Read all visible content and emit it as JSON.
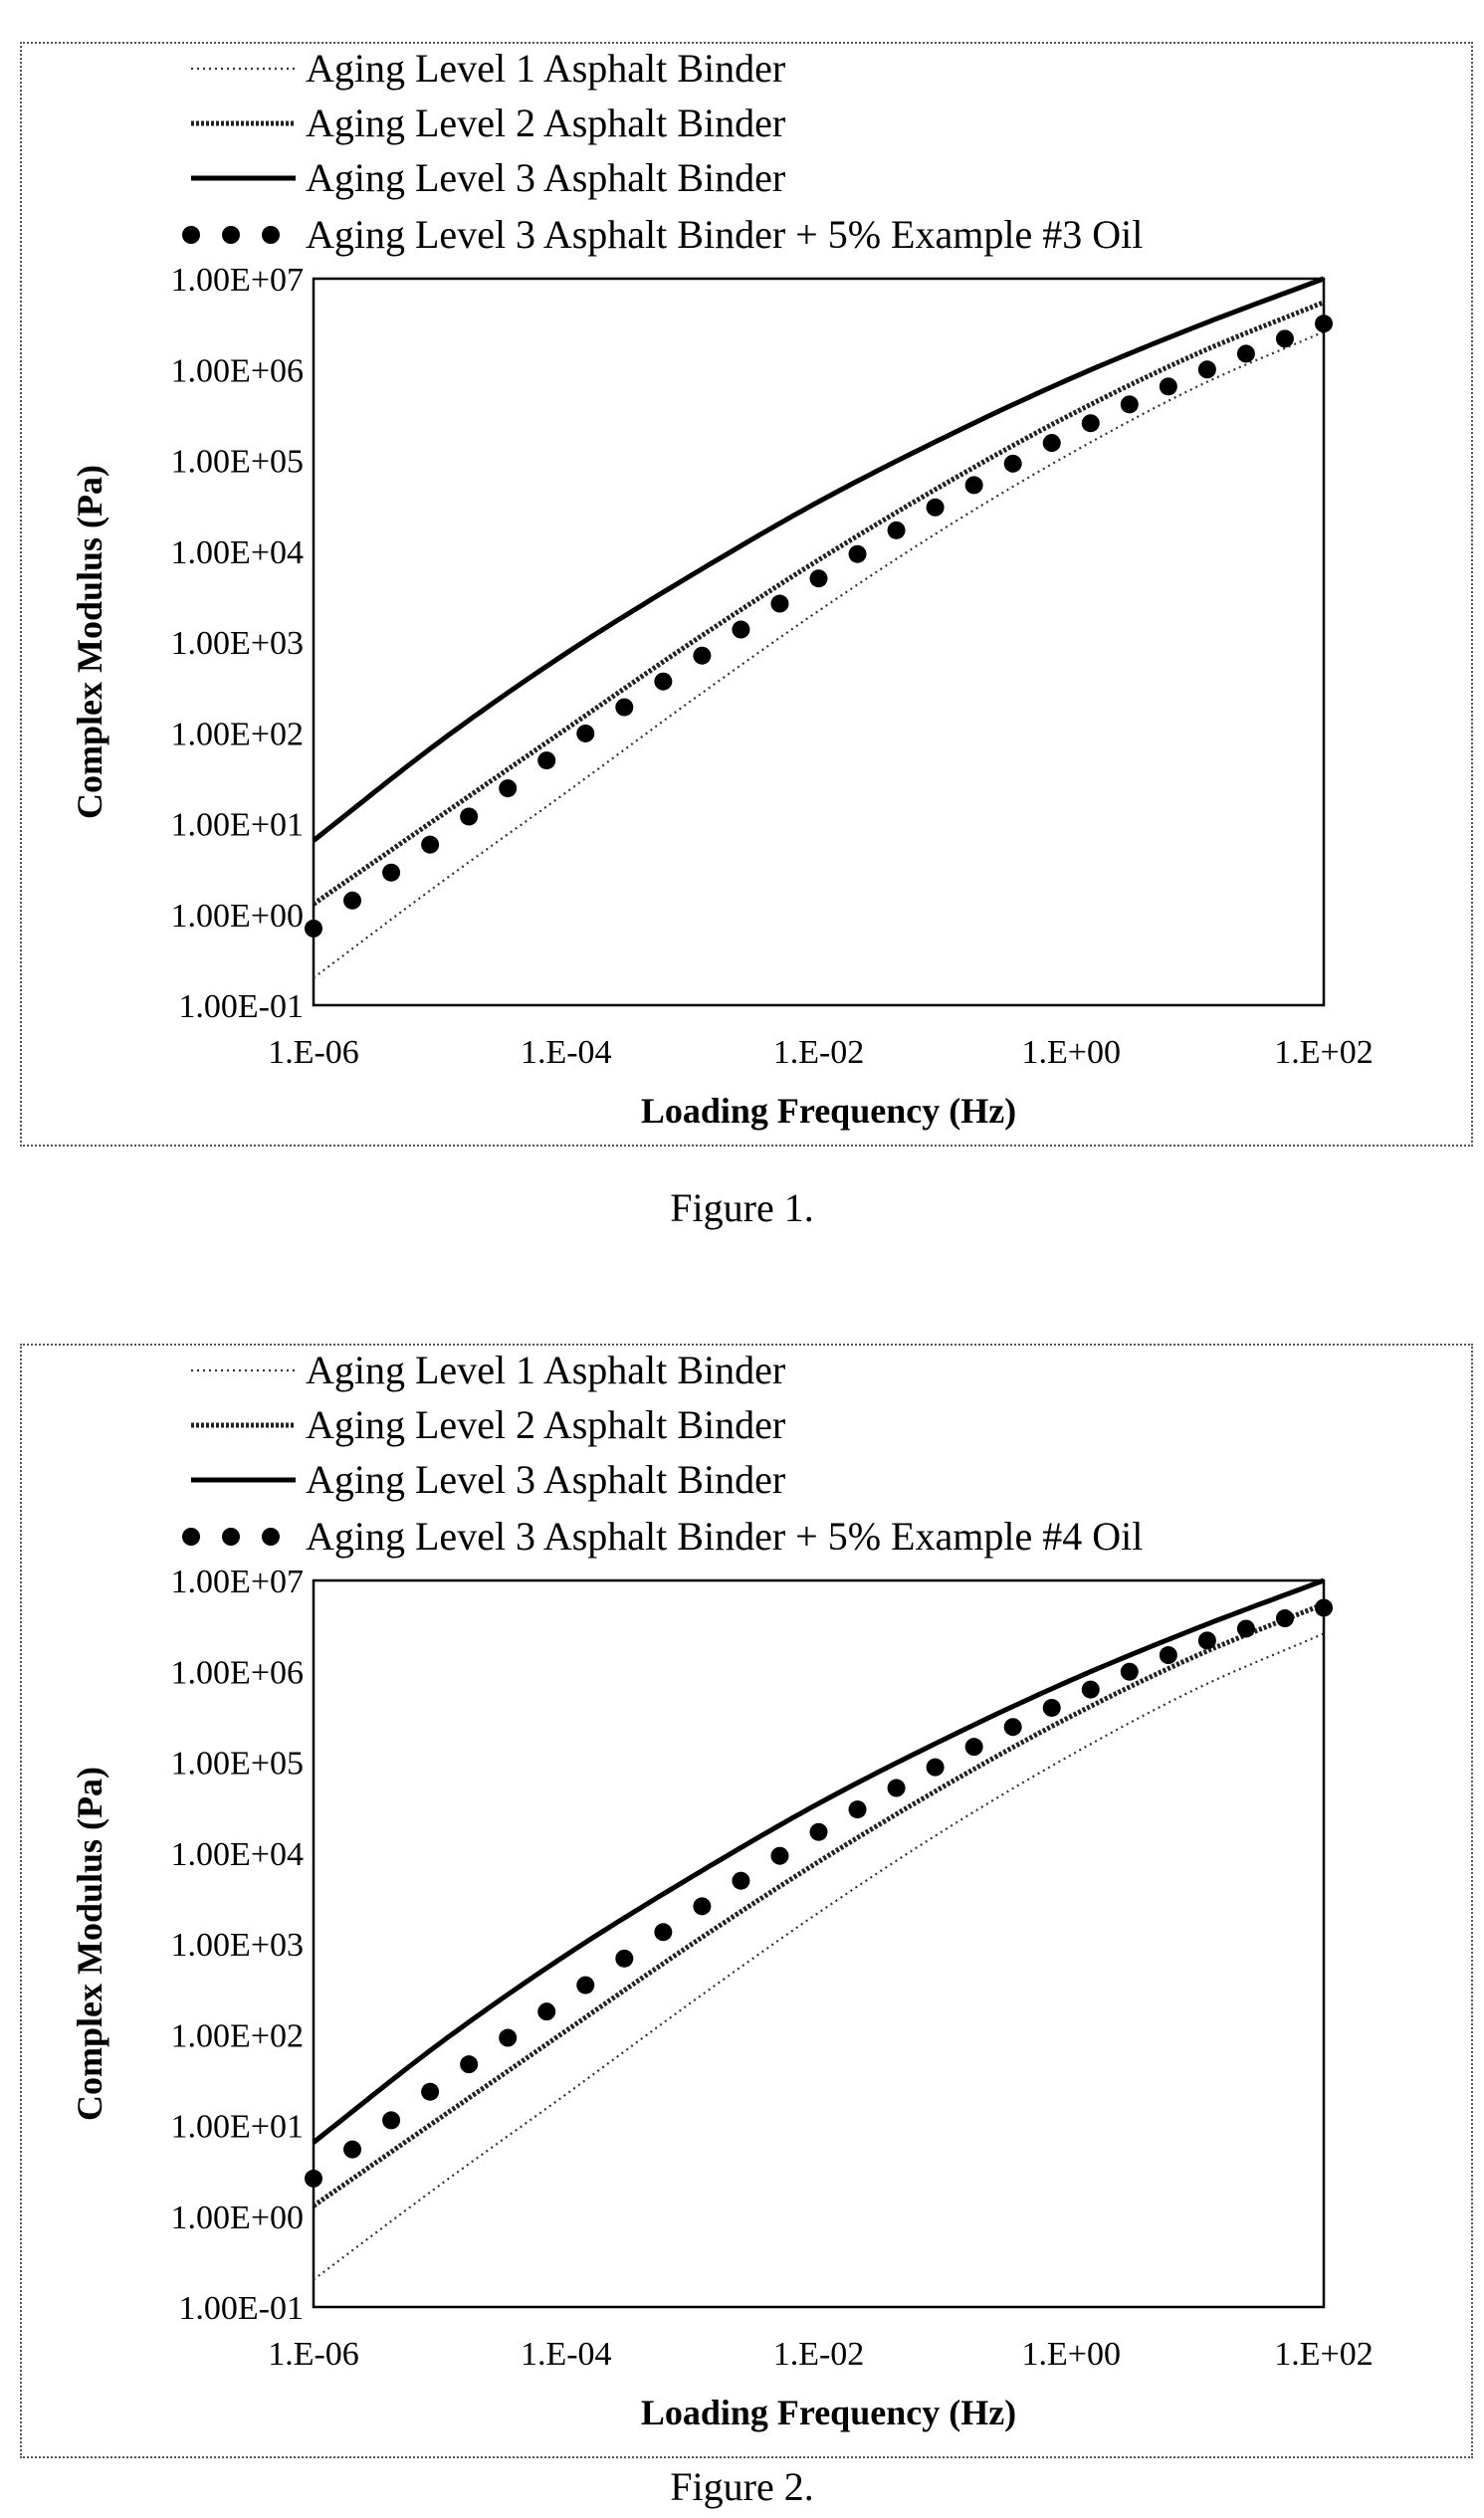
{
  "chart_data": [
    {
      "type": "line",
      "figure_caption": "Figure 1.",
      "xlabel": "Loading Frequency (Hz)",
      "ylabel": "Complex Modulus (Pa)",
      "xscale": "log",
      "yscale": "log",
      "xlim": [
        1e-06,
        100
      ],
      "ylim": [
        0.1,
        10000000
      ],
      "x_ticks": [
        "1.E-06",
        "1.E-04",
        "1.E-02",
        "1.E+00",
        "1.E+02"
      ],
      "y_ticks": [
        "1.00E-01",
        "1.00E+00",
        "1.00E+01",
        "1.00E+02",
        "1.00E+03",
        "1.00E+04",
        "1.00E+05",
        "1.00E+06",
        "1.00E+07"
      ],
      "grid": false,
      "legend_position": "top",
      "series": [
        {
          "name": "Aging Level 1 Asphalt Binder",
          "style": "dotted",
          "points": [
            [
              1e-06,
              0.2
            ],
            [
              1e-05,
              2.2
            ],
            [
              0.0001,
              22
            ],
            [
              0.001,
              230
            ],
            [
              0.01,
              2200
            ],
            [
              0.1,
              18000
            ],
            [
              1,
              120000
            ],
            [
              10,
              650000
            ],
            [
              100,
              2600000
            ]
          ]
        },
        {
          "name": "Aging Level 2 Asphalt Binder",
          "style": "dashed",
          "points": [
            [
              1e-06,
              1.3
            ],
            [
              1e-05,
              12
            ],
            [
              0.0001,
              110
            ],
            [
              0.001,
              1000
            ],
            [
              0.01,
              8000
            ],
            [
              0.1,
              55000
            ],
            [
              1,
              320000
            ],
            [
              10,
              1500000
            ],
            [
              100,
              5500000
            ]
          ]
        },
        {
          "name": "Aging Level 3 Asphalt Binder",
          "style": "solid",
          "points": [
            [
              1e-06,
              6.5
            ],
            [
              1e-05,
              80
            ],
            [
              0.0001,
              750
            ],
            [
              0.001,
              5500
            ],
            [
              0.01,
              35000
            ],
            [
              0.1,
              180000
            ],
            [
              1,
              800000
            ],
            [
              10,
              3000000
            ],
            [
              100,
              10000000
            ]
          ]
        },
        {
          "name": "Aging Level 3 Asphalt Binder + 5% Example #3 Oil",
          "style": "dots",
          "points": [
            [
              1e-06,
              0.7
            ],
            [
              1e-05,
              7
            ],
            [
              0.0001,
              70
            ],
            [
              0.001,
              600
            ],
            [
              0.01,
              5000
            ],
            [
              0.1,
              35000
            ],
            [
              1,
              200000
            ],
            [
              10,
              900000
            ],
            [
              100,
              3200000
            ]
          ]
        }
      ]
    },
    {
      "type": "line",
      "figure_caption": "Figure 2.",
      "xlabel": "Loading Frequency (Hz)",
      "ylabel": "Complex Modulus (Pa)",
      "xscale": "log",
      "yscale": "log",
      "xlim": [
        1e-06,
        100
      ],
      "ylim": [
        0.1,
        10000000
      ],
      "x_ticks": [
        "1.E-06",
        "1.E-04",
        "1.E-02",
        "1.E+00",
        "1.E+02"
      ],
      "y_ticks": [
        "1.00E-01",
        "1.00E+00",
        "1.00E+01",
        "1.00E+02",
        "1.00E+03",
        "1.00E+04",
        "1.00E+05",
        "1.00E+06",
        "1.00E+07"
      ],
      "grid": false,
      "legend_position": "top",
      "series": [
        {
          "name": "Aging Level 1 Asphalt Binder",
          "style": "dotted",
          "points": [
            [
              1e-06,
              0.2
            ],
            [
              1e-05,
              2.2
            ],
            [
              0.0001,
              22
            ],
            [
              0.001,
              230
            ],
            [
              0.01,
              2200
            ],
            [
              0.1,
              18000
            ],
            [
              1,
              120000
            ],
            [
              10,
              650000
            ],
            [
              100,
              2600000
            ]
          ]
        },
        {
          "name": "Aging Level 2 Asphalt Binder",
          "style": "dashed",
          "points": [
            [
              1e-06,
              1.3
            ],
            [
              1e-05,
              12
            ],
            [
              0.0001,
              110
            ],
            [
              0.001,
              1000
            ],
            [
              0.01,
              8000
            ],
            [
              0.1,
              55000
            ],
            [
              1,
              320000
            ],
            [
              10,
              1500000
            ],
            [
              100,
              5500000
            ]
          ]
        },
        {
          "name": "Aging Level 3 Asphalt Binder",
          "style": "solid",
          "points": [
            [
              1e-06,
              6.5
            ],
            [
              1e-05,
              80
            ],
            [
              0.0001,
              750
            ],
            [
              0.001,
              5500
            ],
            [
              0.01,
              35000
            ],
            [
              0.1,
              180000
            ],
            [
              1,
              800000
            ],
            [
              10,
              3000000
            ],
            [
              100,
              10000000
            ]
          ]
        },
        {
          "name": "Aging Level 3 Asphalt Binder + 5% Example #4 Oil",
          "style": "dots",
          "points": [
            [
              1e-06,
              2.6
            ],
            [
              1e-05,
              28
            ],
            [
              0.0001,
              250
            ],
            [
              0.001,
              2200
            ],
            [
              0.01,
              17000
            ],
            [
              0.1,
              100000
            ],
            [
              1,
              500000
            ],
            [
              10,
              2000000
            ],
            [
              100,
              5000000
            ]
          ]
        }
      ]
    }
  ]
}
